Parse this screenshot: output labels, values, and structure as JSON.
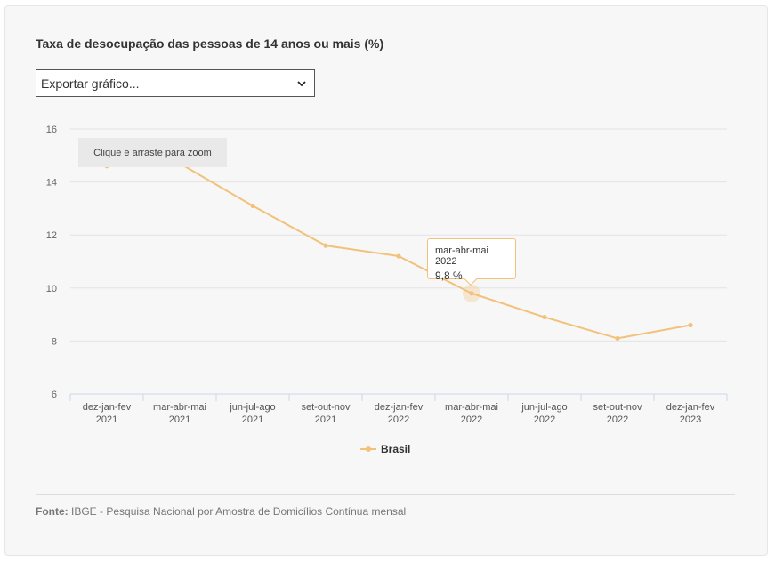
{
  "chart_data": {
    "type": "line",
    "title": "Taxa de desocupação das pessoas de 14 anos ou mais (%)",
    "categories": [
      [
        "dez-jan-fev",
        "2021"
      ],
      [
        "mar-abr-mai",
        "2021"
      ],
      [
        "jun-jul-ago",
        "2021"
      ],
      [
        "set-out-nov",
        "2021"
      ],
      [
        "dez-jan-fev",
        "2022"
      ],
      [
        "mar-abr-mai",
        "2022"
      ],
      [
        "jun-jul-ago",
        "2022"
      ],
      [
        "set-out-nov",
        "2022"
      ],
      [
        "dez-jan-fev",
        "2023"
      ]
    ],
    "series": [
      {
        "name": "Brasil",
        "color": "#f2c17a",
        "values": [
          14.6,
          14.7,
          13.1,
          11.6,
          11.2,
          9.8,
          8.9,
          8.1,
          8.6
        ]
      }
    ],
    "ylim": [
      6,
      16
    ],
    "yticks": [
      "6",
      "8",
      "10",
      "12",
      "14",
      "16"
    ],
    "xlabel": "",
    "ylabel": "",
    "grid": true,
    "legend_position": "bottom-center"
  },
  "export_select": {
    "label": "Exportar gráfico..."
  },
  "zoom_hint": "Clique e arraste para zoom",
  "tooltip": {
    "title": "mar-abr-mai 2022",
    "value": "9,8 %"
  },
  "source": {
    "label": "Fonte:",
    "text": "IBGE - Pesquisa Nacional por Amostra de Domicílios Contínua mensal"
  }
}
